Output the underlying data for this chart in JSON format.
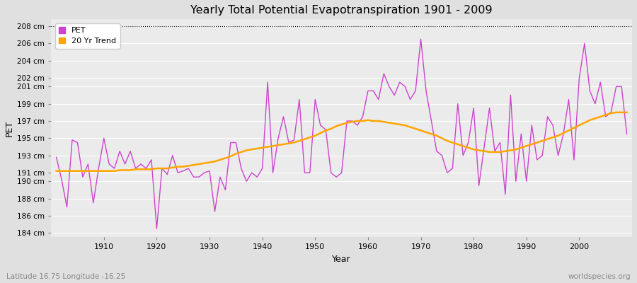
{
  "title": "Yearly Total Potential Evapotranspiration 1901 - 2009",
  "xlabel": "Year",
  "ylabel": "PET",
  "subtitle_left": "Latitude 16.75 Longitude -16.25",
  "subtitle_right": "worldspecies.org",
  "years": [
    1901,
    1902,
    1903,
    1904,
    1905,
    1906,
    1907,
    1908,
    1909,
    1910,
    1911,
    1912,
    1913,
    1914,
    1915,
    1916,
    1917,
    1918,
    1919,
    1920,
    1921,
    1922,
    1923,
    1924,
    1925,
    1926,
    1927,
    1928,
    1929,
    1930,
    1931,
    1932,
    1933,
    1934,
    1935,
    1936,
    1937,
    1938,
    1939,
    1940,
    1941,
    1942,
    1943,
    1944,
    1945,
    1946,
    1947,
    1948,
    1949,
    1950,
    1951,
    1952,
    1953,
    1954,
    1955,
    1956,
    1957,
    1958,
    1959,
    1960,
    1961,
    1962,
    1963,
    1964,
    1965,
    1966,
    1967,
    1968,
    1969,
    1970,
    1971,
    1972,
    1973,
    1974,
    1975,
    1976,
    1977,
    1978,
    1979,
    1980,
    1981,
    1982,
    1983,
    1984,
    1985,
    1986,
    1987,
    1988,
    1989,
    1990,
    1991,
    1992,
    1993,
    1994,
    1995,
    1996,
    1997,
    1998,
    1999,
    2000,
    2001,
    2002,
    2003,
    2004,
    2005,
    2006,
    2007,
    2008,
    2009
  ],
  "pet": [
    192.8,
    190.2,
    187.0,
    194.8,
    194.5,
    190.5,
    192.0,
    187.5,
    191.5,
    195.0,
    192.0,
    191.5,
    193.5,
    192.0,
    193.5,
    191.5,
    192.0,
    191.5,
    192.5,
    184.5,
    191.5,
    190.8,
    193.0,
    191.0,
    191.2,
    191.5,
    190.5,
    190.5,
    191.0,
    191.2,
    186.5,
    190.5,
    189.0,
    194.5,
    194.5,
    191.5,
    190.0,
    191.0,
    190.5,
    191.5,
    201.5,
    191.0,
    195.0,
    197.5,
    194.5,
    194.8,
    199.5,
    191.0,
    191.0,
    199.5,
    196.5,
    196.0,
    191.0,
    190.5,
    191.0,
    197.0,
    197.0,
    196.5,
    197.5,
    200.5,
    200.5,
    199.5,
    202.5,
    201.0,
    200.0,
    201.5,
    201.0,
    199.5,
    200.5,
    206.5,
    200.5,
    197.0,
    193.5,
    193.0,
    191.0,
    191.5,
    199.0,
    193.0,
    194.5,
    198.5,
    189.5,
    194.0,
    198.5,
    193.5,
    194.5,
    188.5,
    200.0,
    190.0,
    195.5,
    190.0,
    196.5,
    192.5,
    193.0,
    197.5,
    196.5,
    193.0,
    195.5,
    199.5,
    192.5,
    202.0,
    206.0,
    200.5,
    199.0,
    201.5,
    197.5,
    198.0,
    201.0,
    201.0,
    195.5
  ],
  "trend": [
    191.2,
    191.2,
    191.2,
    191.2,
    191.2,
    191.2,
    191.2,
    191.2,
    191.2,
    191.2,
    191.2,
    191.2,
    191.3,
    191.3,
    191.3,
    191.4,
    191.4,
    191.4,
    191.4,
    191.5,
    191.5,
    191.5,
    191.6,
    191.7,
    191.7,
    191.8,
    191.9,
    192.0,
    192.1,
    192.2,
    192.3,
    192.5,
    192.7,
    192.9,
    193.2,
    193.4,
    193.6,
    193.7,
    193.8,
    193.9,
    194.0,
    194.1,
    194.2,
    194.3,
    194.4,
    194.5,
    194.7,
    194.9,
    195.1,
    195.3,
    195.6,
    195.9,
    196.1,
    196.4,
    196.6,
    196.8,
    196.9,
    197.0,
    197.0,
    197.1,
    197.0,
    197.0,
    196.9,
    196.8,
    196.7,
    196.6,
    196.5,
    196.3,
    196.1,
    195.9,
    195.7,
    195.5,
    195.3,
    195.0,
    194.7,
    194.5,
    194.3,
    194.1,
    193.9,
    193.7,
    193.6,
    193.5,
    193.4,
    193.4,
    193.4,
    193.5,
    193.6,
    193.7,
    193.9,
    194.1,
    194.3,
    194.5,
    194.7,
    194.9,
    195.1,
    195.3,
    195.6,
    195.9,
    196.2,
    196.5,
    196.8,
    197.1,
    197.3,
    197.5,
    197.7,
    197.9,
    198.0,
    198.0,
    198.0
  ],
  "pet_color": "#CC44CC",
  "trend_color": "#FFA500",
  "fig_bg_color": "#E0E0E0",
  "plot_bg_color": "#EBEBEB",
  "grid_color": "#FFFFFF",
  "ylim_min": 183.5,
  "ylim_max": 208.8,
  "yticks": [
    184,
    186,
    188,
    190,
    191,
    193,
    195,
    197,
    199,
    201,
    202,
    204,
    206,
    208
  ],
  "ytick_labels": [
    "184 cm",
    "186 cm",
    "188 cm",
    "190 cm",
    "191 cm",
    "193 cm",
    "195 cm",
    "197 cm",
    "199 cm",
    "201 cm",
    "202 cm",
    "204 cm",
    "206 cm",
    "208 cm"
  ],
  "xticks": [
    1910,
    1920,
    1930,
    1940,
    1950,
    1960,
    1970,
    1980,
    1990,
    2000
  ],
  "xlim_min": 1900,
  "xlim_max": 2010,
  "dotted_line_y": 208,
  "legend_pet": "PET",
  "legend_trend": "20 Yr Trend"
}
